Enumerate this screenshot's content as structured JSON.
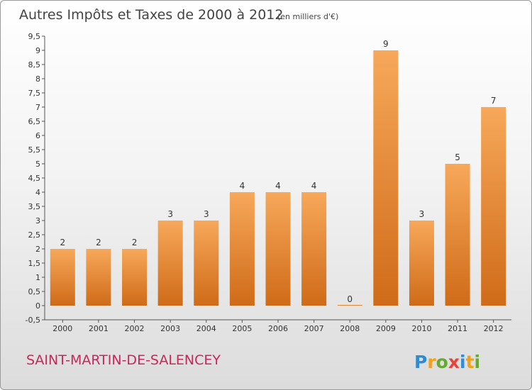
{
  "chart_data": {
    "type": "bar",
    "title": "Autres Impôts et Taxes de 2000 à 2012",
    "subtitle": "(en milliers d'€)",
    "categories": [
      "2000",
      "2001",
      "2002",
      "2003",
      "2004",
      "2005",
      "2006",
      "2007",
      "2008",
      "2009",
      "2010",
      "2011",
      "2012"
    ],
    "values": [
      2,
      2,
      2,
      3,
      3,
      4,
      4,
      4,
      0,
      9,
      3,
      5,
      7
    ],
    "value_labels": [
      "2",
      "2",
      "2",
      "3",
      "3",
      "4",
      "4",
      "4",
      "0",
      "9",
      "3",
      "5",
      "7"
    ],
    "yticks": [
      "-0,5",
      "0",
      "0,5",
      "1",
      "1,5",
      "2",
      "2,5",
      "3",
      "3,5",
      "4",
      "4,5",
      "5",
      "5,5",
      "6",
      "6,5",
      "7",
      "7,5",
      "8",
      "8,5",
      "9",
      "9,5"
    ],
    "ylim": [
      -0.5,
      9.5
    ],
    "grid": false,
    "bar_color": "#f0903a"
  },
  "commune": "SAINT-MARTIN-DE-SALENCEY",
  "logo": {
    "letters": [
      "P",
      "r",
      "o",
      "x",
      "i",
      "t",
      "i"
    ],
    "colors": [
      "#2f8bd4",
      "#f2a11a",
      "#66a832",
      "#e8403a",
      "#2f8bd4",
      "#f2a11a",
      "#66a832"
    ]
  }
}
